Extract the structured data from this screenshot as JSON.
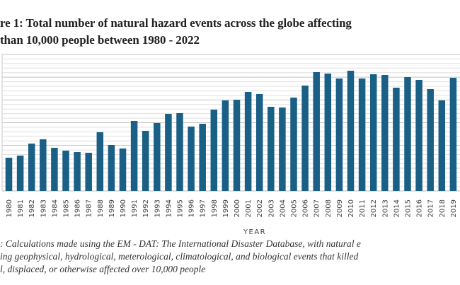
{
  "chart_data": {
    "type": "bar",
    "title_lines": [
      "re 1: Total number of natural hazard events across the globe affecting",
      "than 10,000 people between 1980 - 2022"
    ],
    "xlabel": "YEAR",
    "ylabel": "",
    "categories": [
      "1980",
      "1981",
      "1982",
      "1983",
      "1984",
      "1985",
      "1986",
      "1987",
      "1988",
      "1989",
      "1990",
      "1991",
      "1992",
      "1993",
      "1994",
      "1995",
      "1996",
      "1997",
      "1998",
      "1999",
      "2000",
      "2001",
      "2002",
      "2003",
      "2004",
      "2005",
      "2006",
      "2007",
      "2008",
      "2009",
      "2010",
      "2011",
      "2012",
      "2013",
      "2014",
      "2015",
      "2016",
      "2017",
      "2018",
      "2019"
    ],
    "values": [
      47,
      50,
      67,
      73,
      61,
      57,
      55,
      54,
      83,
      65,
      60,
      99,
      85,
      96,
      109,
      110,
      91,
      95,
      115,
      128,
      129,
      140,
      137,
      119,
      118,
      132,
      149,
      168,
      166,
      159,
      170,
      159,
      165,
      164,
      146,
      161,
      157,
      144,
      128,
      160
    ],
    "value_units": "relative (y-axis tick labels not visible)",
    "ylim": [
      0,
      193
    ],
    "grid": true,
    "bar_color": "#1a5f86",
    "notes": [
      ": Calculations made using the EM - DAT: The International Disaster Database, with natural e",
      "ing geophysical, hydrological, meterological, climatological, and biological events that killed",
      "l, displaced, or otherwise affected over 10,000 people"
    ]
  }
}
